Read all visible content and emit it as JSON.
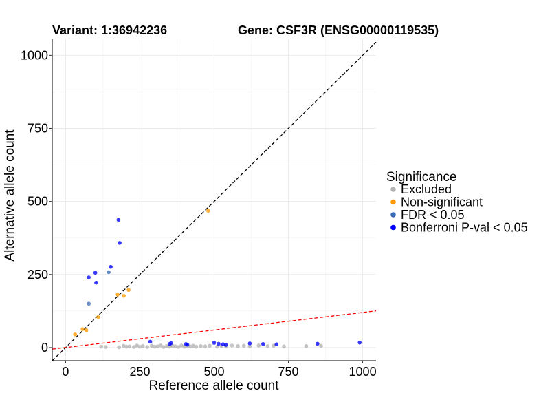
{
  "chart_data": {
    "type": "scatter",
    "title_left": "Variant: 1:36942236",
    "title_right": "Gene: CSF3R (ENSG00000119535)",
    "xlabel": "Reference allele count",
    "ylabel": "Alternative allele count",
    "xlim": [
      -45,
      1045
    ],
    "ylim": [
      -45,
      1055
    ],
    "xticks": [
      0,
      250,
      500,
      750,
      1000
    ],
    "yticks": [
      0,
      250,
      500,
      750,
      1000
    ],
    "grid": true,
    "legend": {
      "title": "Significance",
      "position": "right",
      "entries": [
        {
          "label": "Excluded",
          "color": "#b3b3b3"
        },
        {
          "label": "Non-significant",
          "color": "#ff9900"
        },
        {
          "label": "FDR < 0.05",
          "color": "#3a6ab4"
        },
        {
          "label": "Bonferroni P-val < 0.05",
          "color": "#0000ff"
        }
      ]
    },
    "reference_lines": [
      {
        "name": "equal-ratio",
        "slope": 1.0,
        "intercept": 0,
        "color": "#000000",
        "style": "dashed"
      },
      {
        "name": "threshold",
        "slope": 0.12,
        "intercept": 0,
        "color": "#ff0000",
        "style": "dashed"
      }
    ],
    "series": [
      {
        "name": "Excluded",
        "color": "#b3b3b3",
        "points": [
          [
            120,
            3
          ],
          [
            135,
            2
          ],
          [
            180,
            1
          ],
          [
            195,
            6
          ],
          [
            205,
            3
          ],
          [
            215,
            4
          ],
          [
            230,
            2
          ],
          [
            240,
            7
          ],
          [
            250,
            3
          ],
          [
            260,
            5
          ],
          [
            275,
            2
          ],
          [
            290,
            6
          ],
          [
            300,
            3
          ],
          [
            310,
            4
          ],
          [
            320,
            7
          ],
          [
            330,
            2
          ],
          [
            340,
            5
          ],
          [
            350,
            3
          ],
          [
            360,
            6
          ],
          [
            370,
            4
          ],
          [
            380,
            2
          ],
          [
            390,
            7
          ],
          [
            400,
            3
          ],
          [
            410,
            5
          ],
          [
            420,
            4
          ],
          [
            430,
            6
          ],
          [
            440,
            3
          ],
          [
            455,
            5
          ],
          [
            470,
            4
          ],
          [
            485,
            6
          ],
          [
            510,
            3
          ],
          [
            525,
            5
          ],
          [
            540,
            4
          ],
          [
            560,
            7
          ],
          [
            580,
            5
          ],
          [
            600,
            6
          ],
          [
            620,
            4
          ],
          [
            650,
            7
          ],
          [
            680,
            5
          ],
          [
            700,
            6
          ],
          [
            735,
            4
          ],
          [
            810,
            5
          ],
          [
            860,
            6
          ]
        ]
      },
      {
        "name": "Non-significant",
        "color": "#ff9900",
        "points": [
          [
            32,
            45
          ],
          [
            57,
            63
          ],
          [
            70,
            59
          ],
          [
            110,
            104
          ],
          [
            175,
            181
          ],
          [
            196,
            177
          ],
          [
            212,
            197
          ],
          [
            480,
            468
          ]
        ]
      },
      {
        "name": "FDR < 0.05",
        "color": "#3a6ab4",
        "points": [
          [
            78,
            150
          ],
          [
            145,
            258
          ]
        ]
      },
      {
        "name": "Bonferroni P-val < 0.05",
        "color": "#0000ff",
        "points": [
          [
            78,
            240
          ],
          [
            100,
            256
          ],
          [
            103,
            222
          ],
          [
            152,
            276
          ],
          [
            178,
            437
          ],
          [
            182,
            358
          ],
          [
            285,
            20
          ],
          [
            350,
            12
          ],
          [
            355,
            15
          ],
          [
            405,
            12
          ],
          [
            410,
            10
          ],
          [
            500,
            16
          ],
          [
            515,
            13
          ],
          [
            530,
            11
          ],
          [
            540,
            9
          ],
          [
            620,
            14
          ],
          [
            665,
            12
          ],
          [
            710,
            11
          ],
          [
            848,
            13
          ],
          [
            990,
            17
          ]
        ]
      }
    ]
  }
}
